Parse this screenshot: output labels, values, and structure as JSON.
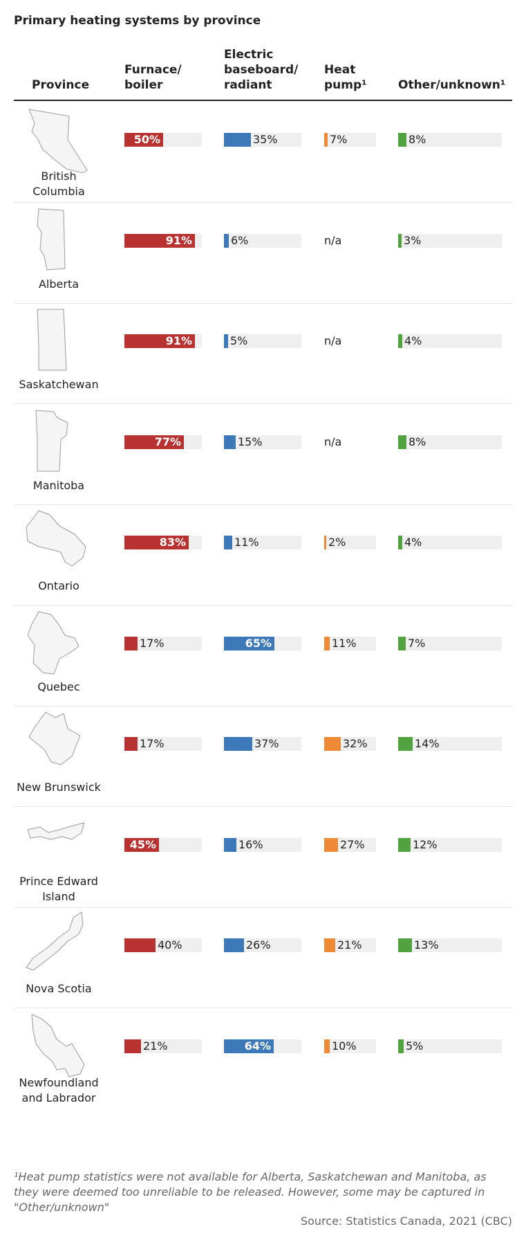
{
  "title": "Primary heating systems by province",
  "headers": {
    "province": "Province",
    "furnace": "Furnace/\nboiler",
    "electric": "Electric\nbaseboard/\nradiant",
    "heatpump": "Heat\npump¹",
    "other": "Other/unknown¹"
  },
  "colors": {
    "furnace": "#b83232",
    "electric": "#3d78b8",
    "heatpump": "#ee8a35",
    "other": "#52a242",
    "track": "#efefef"
  },
  "chart_data": {
    "type": "table",
    "columns": [
      "Furnace/boiler",
      "Electric baseboard/radiant",
      "Heat pump¹",
      "Other/unknown¹"
    ],
    "unit": "%",
    "rows": [
      {
        "province": "British Columbia",
        "furnace": 50,
        "electric": 35,
        "heatpump": 7,
        "other": 8
      },
      {
        "province": "Alberta",
        "furnace": 91,
        "electric": 6,
        "heatpump": null,
        "other": 3
      },
      {
        "province": "Saskatchewan",
        "furnace": 91,
        "electric": 5,
        "heatpump": null,
        "other": 4
      },
      {
        "province": "Manitoba",
        "furnace": 77,
        "electric": 15,
        "heatpump": null,
        "other": 8
      },
      {
        "province": "Ontario",
        "furnace": 83,
        "electric": 11,
        "heatpump": 2,
        "other": 4
      },
      {
        "province": "Quebec",
        "furnace": 17,
        "electric": 65,
        "heatpump": 11,
        "other": 7
      },
      {
        "province": "New Brunswick",
        "furnace": 17,
        "electric": 37,
        "heatpump": 32,
        "other": 14
      },
      {
        "province": "Prince Edward Island",
        "furnace": 45,
        "electric": 16,
        "heatpump": 27,
        "other": 12
      },
      {
        "province": "Nova Scotia",
        "furnace": 40,
        "electric": 26,
        "heatpump": 21,
        "other": 13
      },
      {
        "province": "Newfoundland and Labrador",
        "furnace": 21,
        "electric": 64,
        "heatpump": 10,
        "other": 5
      }
    ],
    "na_label": "n/a"
  },
  "footnote": "¹Heat pump statistics were not available for Alberta, Saskatchewan and Manitoba, as they were deemed too unreliable to be released. However, some may be captured in \"Other/unknown\"",
  "source": "Source: Statistics Canada, 2021 (CBC)"
}
